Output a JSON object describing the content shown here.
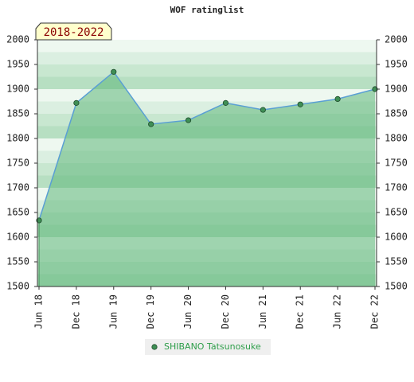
{
  "chart_data": {
    "type": "area",
    "title": "WOF ratinglist",
    "annotation": "2018-2022",
    "categories": [
      "Jun 18",
      "Dec 18",
      "Jun 19",
      "Dec 19",
      "Jun 20",
      "Dec 20",
      "Jun 21",
      "Dec 21",
      "Jun 22",
      "Dec 22"
    ],
    "series": [
      {
        "name": "SHIBANO Tatsunosuke",
        "color": "#5a9fd4",
        "area_color": "#5fb77a",
        "marker_color": "#3f8f55",
        "values": [
          1634,
          1872,
          1935,
          1829,
          1837,
          1872,
          1858,
          1869,
          1880,
          1900
        ]
      }
    ],
    "ylim": [
      1500,
      2000
    ],
    "yticks": [
      1500,
      1550,
      1600,
      1650,
      1700,
      1750,
      1800,
      1850,
      1900,
      1950,
      2000
    ],
    "legend": "bottom"
  }
}
